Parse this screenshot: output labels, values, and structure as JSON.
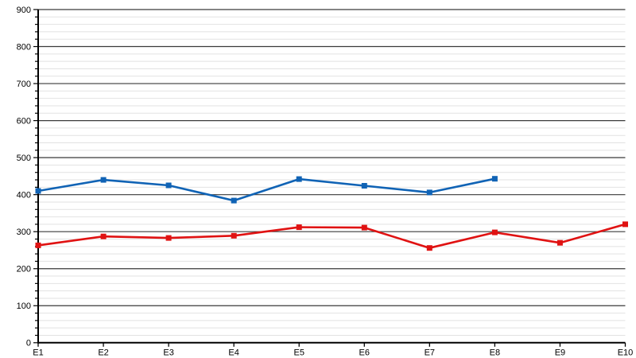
{
  "page": {
    "background": "#ffffff"
  },
  "chart_data": {
    "type": "line",
    "title": "",
    "categories": [
      "E1",
      "E2",
      "E3",
      "E4",
      "E5",
      "E6",
      "E7",
      "E8",
      "E9",
      "E10"
    ],
    "series": [
      {
        "id": "blue-series",
        "color": "#1063b5",
        "marker": "square",
        "values": [
          410,
          440,
          425,
          384,
          442,
          424,
          406,
          443,
          null,
          null
        ]
      },
      {
        "id": "red-series",
        "color": "#e01212",
        "marker": "square",
        "values": [
          263,
          287,
          283,
          289,
          312,
          311,
          256,
          298,
          270,
          320
        ]
      }
    ],
    "xlabel": "",
    "ylabel": "",
    "ylim": [
      0,
      900
    ],
    "y_major_step": 100,
    "y_minor_step": 20,
    "y_tick_labels": [
      "0",
      "100",
      "200",
      "300",
      "400",
      "500",
      "600",
      "700",
      "800",
      "900"
    ],
    "grid": {
      "major": true,
      "minor": true
    },
    "legend": "none",
    "colors": {
      "axis": "#000000",
      "major_grid": "#3a3a3a",
      "minor_grid": "#e2e2e2",
      "tick_label": "#000000"
    }
  }
}
